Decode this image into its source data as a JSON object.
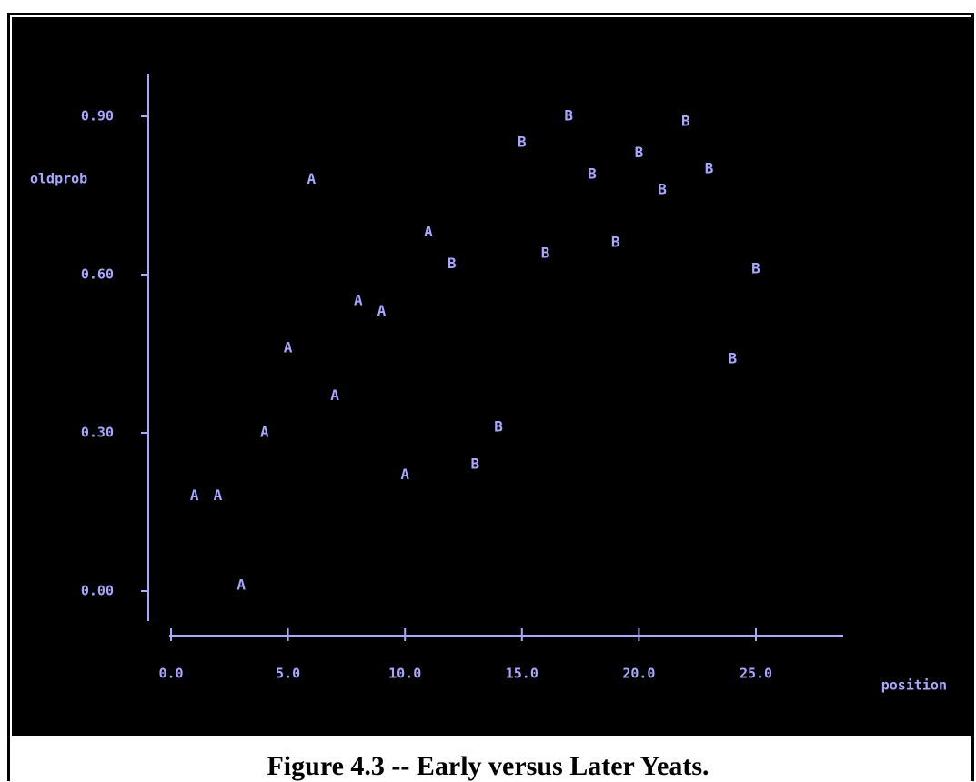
{
  "colors": {
    "background": "#000000",
    "foreground": "#a8a8ff",
    "page": "#ffffff",
    "caption": "#000000"
  },
  "caption": "Figure 4.3 -- Early versus Later Yeats.",
  "chart_data": {
    "type": "scatter",
    "title": "",
    "xlabel": "position",
    "ylabel": "oldprob",
    "xlim": [
      0,
      29
    ],
    "ylim": [
      -0.09,
      0.94
    ],
    "xticks": [
      0.0,
      5.0,
      10.0,
      15.0,
      20.0,
      25.0
    ],
    "xtick_labels": [
      "0.0",
      "5.0",
      "10.0",
      "15.0",
      "20.0",
      "25.0"
    ],
    "yticks": [
      0.0,
      0.3,
      0.6,
      0.9
    ],
    "ytick_labels": [
      "0.00",
      "0.30",
      "0.60",
      "0.90"
    ],
    "grid": false,
    "legend": "none",
    "marker": "letter",
    "series": [
      {
        "name": "A",
        "points": [
          {
            "x": 1,
            "y": 0.18
          },
          {
            "x": 2,
            "y": 0.18
          },
          {
            "x": 3,
            "y": 0.01
          },
          {
            "x": 4,
            "y": 0.3
          },
          {
            "x": 5,
            "y": 0.46
          },
          {
            "x": 6,
            "y": 0.78
          },
          {
            "x": 7,
            "y": 0.37
          },
          {
            "x": 8,
            "y": 0.55
          },
          {
            "x": 9,
            "y": 0.53
          },
          {
            "x": 10,
            "y": 0.22
          },
          {
            "x": 11,
            "y": 0.68
          }
        ]
      },
      {
        "name": "B",
        "points": [
          {
            "x": 12,
            "y": 0.62
          },
          {
            "x": 13,
            "y": 0.24
          },
          {
            "x": 14,
            "y": 0.31
          },
          {
            "x": 15,
            "y": 0.85
          },
          {
            "x": 16,
            "y": 0.64
          },
          {
            "x": 17,
            "y": 0.9
          },
          {
            "x": 18,
            "y": 0.79
          },
          {
            "x": 19,
            "y": 0.66
          },
          {
            "x": 20,
            "y": 0.83
          },
          {
            "x": 21,
            "y": 0.76
          },
          {
            "x": 22,
            "y": 0.89
          },
          {
            "x": 23,
            "y": 0.8
          },
          {
            "x": 24,
            "y": 0.44
          },
          {
            "x": 25,
            "y": 0.61
          }
        ]
      }
    ]
  }
}
